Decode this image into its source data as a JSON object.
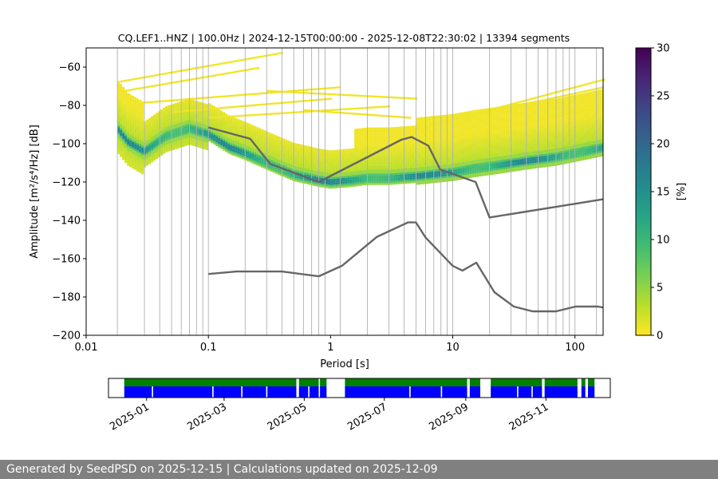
{
  "chart_data": [
    {
      "type": "heatmap",
      "title": "CQ.LEF1..HNZ | 100.0Hz | 2024-12-15T00:00:00 - 2025-12-08T22:30:02 | 13394 segments",
      "xlabel": "Period [s]",
      "ylabel": "Amplitude [m²/s⁴/Hz] [dB]",
      "x_scale": "log",
      "xlim": [
        0.01,
        170
      ],
      "ylim": [
        -200,
        -50
      ],
      "x_ticks": [
        0.01,
        0.1,
        1,
        10,
        100
      ],
      "x_tick_labels": [
        "0.01",
        "0.1",
        "1",
        "10",
        "100"
      ],
      "y_ticks": [
        -200,
        -180,
        -160,
        -140,
        -120,
        -100,
        -80,
        -60
      ],
      "y_tick_labels": [
        "−200",
        "−180",
        "−160",
        "−140",
        "−120",
        "−100",
        "−80",
        "−60"
      ],
      "grid": "vertical lines at period bins",
      "mode_curve": {
        "period": [
          0.018,
          0.022,
          0.03,
          0.045,
          0.07,
          0.1,
          0.15,
          0.2,
          0.3,
          0.5,
          0.8,
          1.0,
          1.5,
          2,
          3,
          5,
          7,
          10,
          15,
          25,
          40,
          70,
          100,
          170
        ],
        "db": [
          -92,
          -99,
          -104,
          -96,
          -92,
          -95,
          -102,
          -105,
          -110,
          -116,
          -119,
          -120,
          -119,
          -118,
          -118,
          -117,
          -116,
          -115,
          -113,
          -111,
          -109,
          -107,
          -105,
          -102
        ]
      },
      "nhnm": {
        "period": [
          0.1,
          0.22,
          0.32,
          0.8,
          3.8,
          4.6,
          6.3,
          7.9,
          15.4,
          20.0,
          170
        ],
        "db": [
          -91.5,
          -97.4,
          -110.5,
          -120.0,
          -97.9,
          -96.5,
          -101.0,
          -113.5,
          -120.0,
          -138.5,
          -129.0
        ]
      },
      "nlnm": {
        "period": [
          0.1,
          0.17,
          0.4,
          0.8,
          1.24,
          2.4,
          4.3,
          5.0,
          6.0,
          10.0,
          12.0,
          15.6,
          21.9,
          31.6,
          45.0,
          70.0,
          101.0,
          154.0,
          170
        ],
        "db": [
          -168.0,
          -166.7,
          -166.7,
          -169.2,
          -163.7,
          -148.6,
          -141.1,
          -141.1,
          -149.0,
          -163.8,
          -166.2,
          -162.1,
          -177.5,
          -185.0,
          -187.5,
          -187.5,
          -185.0,
          -185.0,
          -185.5
        ]
      },
      "colorbar": {
        "label": "[%]",
        "min": 0,
        "max": 30,
        "ticks": [
          0,
          5,
          10,
          15,
          20,
          25,
          30
        ],
        "colormap": "viridis_r"
      },
      "colors": {
        "model_line": "#666666",
        "grid": "#b0b0b0"
      }
    },
    {
      "type": "timeline",
      "x_tick_labels": [
        "2025-01",
        "2025-03",
        "2025-05",
        "2025-07",
        "2025-09",
        "2025-11"
      ],
      "range": [
        "2024-12-15",
        "2025-12-08"
      ],
      "colors": {
        "top_band": "#008000",
        "bottom_band": "#0000ff"
      },
      "coverage": [
        [
          "2024-12-15",
          "2025-04-25"
        ],
        [
          "2025-04-27",
          "2025-05-12"
        ],
        [
          "2025-05-13",
          "2025-05-18"
        ],
        [
          "2025-06-01",
          "2025-09-02"
        ],
        [
          "2025-09-04",
          "2025-09-12"
        ],
        [
          "2025-09-20",
          "2025-10-29"
        ],
        [
          "2025-10-31",
          "2025-11-25"
        ],
        [
          "2025-11-28",
          "2025-12-01"
        ],
        [
          "2025-12-03",
          "2025-12-08"
        ]
      ],
      "gaps_lower_only": [
        "2025-01-05",
        "2025-02-20",
        "2025-03-14",
        "2025-04-02",
        "2025-05-04",
        "2025-07-20",
        "2025-08-13",
        "2025-10-10",
        "2025-10-21"
      ]
    }
  ],
  "footer": {
    "text": "Generated by SeedPSD on 2025-12-15 | Calculations updated on 2025-12-09"
  }
}
